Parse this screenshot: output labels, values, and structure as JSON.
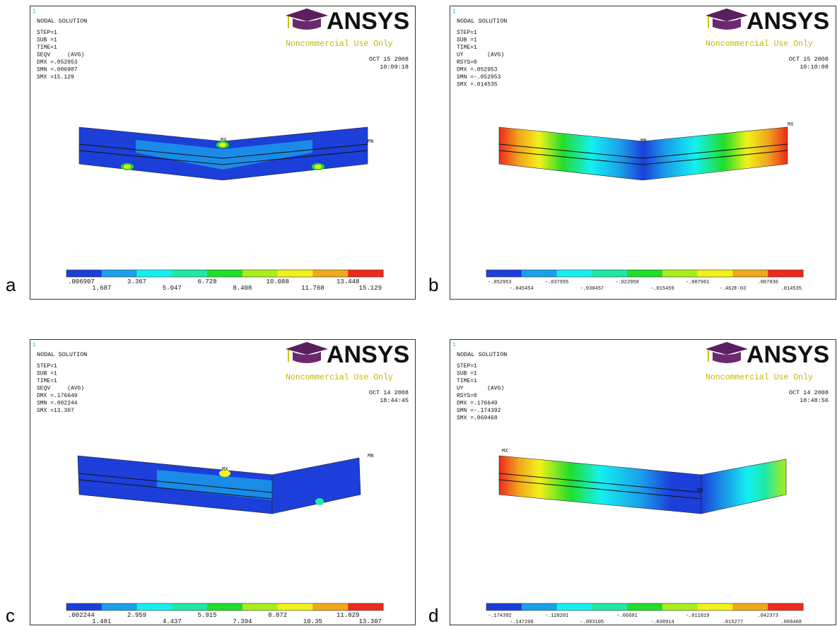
{
  "panels": [
    {
      "label": "a",
      "window": "1",
      "title": "NODAL SOLUTION",
      "info": [
        "STEP=1",
        "SUB =1",
        "TIME=1",
        "SEQV     (AVG)",
        "DMX =.052953",
        "SMN =.006907",
        "SMX =15.129"
      ],
      "logo": "ANSYS",
      "notice": "Noncommercial Use Only",
      "date": "OCT 15 2008",
      "time": "10:09:18",
      "markers": [
        "MX",
        "MN"
      ],
      "legend": [
        ".006907",
        "1.687",
        "3.367",
        "5.047",
        "6.728",
        "8.408",
        "10.088",
        "11.768",
        "13.448",
        "15.129"
      ]
    },
    {
      "label": "b",
      "window": "1",
      "title": "NODAL SOLUTION",
      "info": [
        "STEP=1",
        "SUB =1",
        "TIME=1",
        "UY       (AVG)",
        "RSYS=0",
        "DMX =.052953",
        "SMN =-.052953",
        "SMX =.014535"
      ],
      "logo": "ANSYS",
      "notice": "Noncommercial Use Only",
      "date": "OCT 15 2008",
      "time": "10:10:08",
      "markers": [
        "MN",
        "MX"
      ],
      "legend": [
        "-.052953",
        "-.045454",
        "-.037955",
        "-.030457",
        "-.022958",
        "-.015459",
        "-.007961",
        "-.462E-03",
        ".007036",
        ".014535"
      ]
    },
    {
      "label": "c",
      "window": "1",
      "title": "NODAL SOLUTION",
      "info": [
        "STEP=1",
        "SUB =1",
        "TIME=1",
        "SEQV     (AVG)",
        "DMX =.176649",
        "SMN =.002244",
        "SMX =13.307"
      ],
      "logo": "ANSYS",
      "notice": "Noncommercial Use Only",
      "date": "OCT 14 2008",
      "time": "18:44:45",
      "markers": [
        "MX",
        "MN"
      ],
      "legend": [
        ".002244",
        "1.481",
        "2.959",
        "4.437",
        "5.915",
        "7.394",
        "8.872",
        "10.35",
        "11.829",
        "13.307"
      ]
    },
    {
      "label": "d",
      "window": "1",
      "title": "NODAL SOLUTION",
      "info": [
        "STEP=1",
        "SUB =1",
        "TIME=1",
        "UY       (AVG)",
        "RSYS=0",
        "DMX =.176649",
        "SMN =-.174392",
        "SMX =.069468"
      ],
      "logo": "ANSYS",
      "notice": "Noncommercial Use Only",
      "date": "OCT 14 2008",
      "time": "18:48:56",
      "markers": [
        "MX",
        "MN"
      ],
      "legend": [
        "-.174392",
        "-.147296",
        "-.120201",
        "-.093105",
        "-.06601",
        "-.038914",
        "-.011819",
        ".015277",
        ".042373",
        ".069468"
      ]
    }
  ]
}
